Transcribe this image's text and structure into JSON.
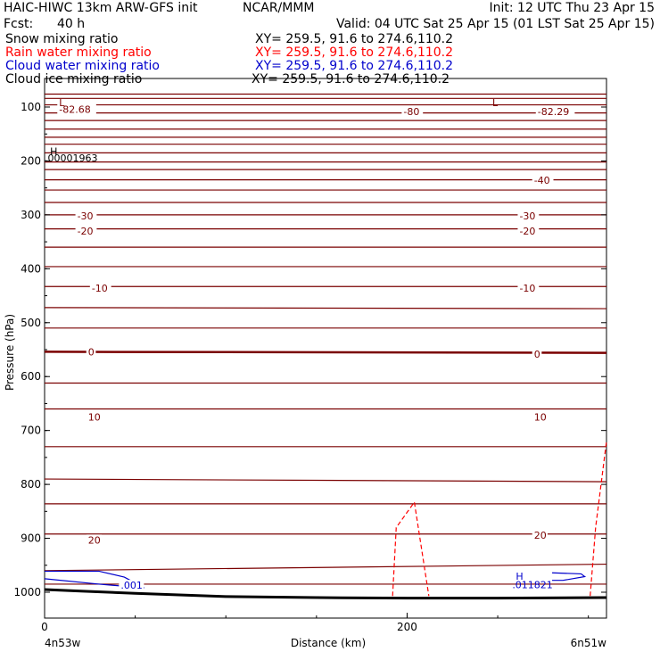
{
  "header": {
    "title": "HAIC-HIWC 13km ARW-GFS init",
    "source": "NCAR/MMM",
    "init": "Init: 12 UTC Thu 23 Apr 15",
    "fcst_label": "Fcst:",
    "fcst_value": "40 h",
    "valid": "Valid: 04 UTC Sat 25 Apr 15 (01 LST Sat 25 Apr 15)"
  },
  "legend": [
    {
      "name": "Snow mixing ratio",
      "xy": "XY= 259.5, 91.6 to 274.6,110.2",
      "color": "#000000"
    },
    {
      "name": "Rain water mixing ratio",
      "xy": "XY= 259.5, 91.6 to 274.6,110.2",
      "color": "#ff0000"
    },
    {
      "name": "Cloud water mixing ratio",
      "xy": "XY= 259.5, 91.6 to 274.6,110.2",
      "color": "#0000cc"
    },
    {
      "name": "Cloud ice mixing ratio",
      "xy": "XY= 259.5, 91.6 to 274.6,110.2",
      "color": "#000000"
    }
  ],
  "chart_data": {
    "type": "line",
    "xlabel": "Distance (km)",
    "ylabel": "Pressure (hPa)",
    "xlim": [
      0,
      310
    ],
    "ylim": [
      1050,
      65
    ],
    "x_ticks": [
      {
        "value": 0,
        "label": "0"
      },
      {
        "value": 200,
        "label": "200"
      }
    ],
    "x_end_labels": {
      "left": "4n53w",
      "right": "6n51w"
    },
    "y_ticks": [
      {
        "value": 100,
        "label": "100"
      },
      {
        "value": 200,
        "label": "200"
      },
      {
        "value": 300,
        "label": "300"
      },
      {
        "value": 400,
        "label": "400"
      },
      {
        "value": 500,
        "label": "500"
      },
      {
        "value": 600,
        "label": "600"
      },
      {
        "value": 700,
        "label": "700"
      },
      {
        "value": 800,
        "label": "800"
      },
      {
        "value": 900,
        "label": "900"
      },
      {
        "value": 1000,
        "label": "1000"
      }
    ],
    "colors": {
      "temperature": "#7a0000",
      "rain": "#ff0000",
      "cloud_water": "#0000cc",
      "terrain": "#000000"
    },
    "temperature_isotherms": [
      {
        "p": [
          76,
          76
        ]
      },
      {
        "p": [
          84,
          84
        ]
      },
      {
        "p": [
          96,
          96
        ]
      },
      {
        "p": [
          111,
          111
        ]
      },
      {
        "p": [
          125,
          125
        ]
      },
      {
        "p": [
          141,
          141
        ]
      },
      {
        "p": [
          156,
          156
        ]
      },
      {
        "p": [
          169,
          169
        ]
      },
      {
        "p": [
          185,
          185
        ]
      },
      {
        "p": [
          202,
          202
        ]
      },
      {
        "p": [
          216,
          216
        ]
      },
      {
        "p": [
          235,
          235
        ]
      },
      {
        "p": [
          254,
          254
        ]
      },
      {
        "p": [
          277,
          277
        ]
      },
      {
        "p": [
          300,
          300
        ]
      },
      {
        "p": [
          326,
          326
        ]
      },
      {
        "p": [
          360,
          360
        ]
      },
      {
        "p": [
          396,
          396
        ]
      },
      {
        "p": [
          433,
          433
        ]
      },
      {
        "p": [
          472,
          474
        ]
      },
      {
        "p": [
          510,
          510
        ]
      },
      {
        "p": [
          554,
          556
        ],
        "bold": true
      },
      {
        "p": [
          612,
          612
        ]
      },
      {
        "p": [
          660,
          660
        ]
      },
      {
        "p": [
          730,
          730
        ]
      },
      {
        "p": [
          790,
          795
        ]
      },
      {
        "p": [
          836,
          836
        ]
      },
      {
        "p": [
          892,
          892
        ]
      },
      {
        "p": [
          960,
          948
        ]
      },
      {
        "p": [
          985,
          985
        ]
      }
    ],
    "isotherm_labels": [
      {
        "x": 8,
        "p": 104,
        "text": "-82.68"
      },
      {
        "x": 198,
        "p": 108,
        "text": "-80"
      },
      {
        "x": 272,
        "p": 108,
        "text": "-82.29"
      },
      {
        "x": 18,
        "p": 302,
        "text": "-30"
      },
      {
        "x": 262,
        "p": 302,
        "text": "-30"
      },
      {
        "x": 18,
        "p": 330,
        "text": "-20"
      },
      {
        "x": 262,
        "p": 330,
        "text": "-20"
      },
      {
        "x": 270,
        "p": 236,
        "text": "-40"
      },
      {
        "x": 26,
        "p": 436,
        "text": "-10"
      },
      {
        "x": 262,
        "p": 436,
        "text": "-10"
      },
      {
        "x": 24,
        "p": 554,
        "text": "0"
      },
      {
        "x": 270,
        "p": 558,
        "text": "0"
      },
      {
        "x": 24,
        "p": 675,
        "text": "10"
      },
      {
        "x": 270,
        "p": 675,
        "text": "10"
      },
      {
        "x": 24,
        "p": 903,
        "text": "20"
      },
      {
        "x": 270,
        "p": 894,
        "text": "20"
      }
    ],
    "extrema": [
      {
        "x": 8,
        "p": 92,
        "text": "L"
      },
      {
        "x": 247,
        "p": 92,
        "text": "L"
      },
      {
        "x": 3,
        "p": 182,
        "text": "H"
      },
      {
        "x": 0,
        "p": 194,
        "text": ".00001963"
      }
    ],
    "rain_mixing_ratio": [
      {
        "points": [
          [
            192,
            1007
          ],
          [
            194,
            880
          ],
          [
            204,
            833
          ],
          [
            212,
            1007
          ]
        ]
      },
      {
        "points": [
          [
            301,
            1007
          ],
          [
            304,
            880
          ],
          [
            310,
            720
          ]
        ]
      }
    ],
    "cloud_water_mixing_ratio": {
      "points": [
        [
          0,
          961
        ],
        [
          30,
          961
        ],
        [
          44,
          972
        ],
        [
          55,
          992
        ],
        [
          30,
          985
        ],
        [
          0,
          975
        ]
      ],
      "label": ".001",
      "label_at": [
        42,
        987
      ],
      "extremum": {
        "symbol": "H",
        "value": ".011821",
        "symbol_at": [
          260,
          970
        ],
        "value_at": [
          258,
          986
        ]
      },
      "extremum_contour": [
        [
          280,
          964
        ],
        [
          296,
          966
        ],
        [
          298,
          971
        ],
        [
          286,
          978
        ],
        [
          280,
          978
        ]
      ]
    },
    "terrain": [
      [
        0,
        995
      ],
      [
        20,
        998
      ],
      [
        50,
        1002
      ],
      [
        100,
        1008
      ],
      [
        150,
        1010
      ],
      [
        200,
        1011
      ],
      [
        250,
        1011
      ],
      [
        310,
        1010
      ]
    ]
  }
}
